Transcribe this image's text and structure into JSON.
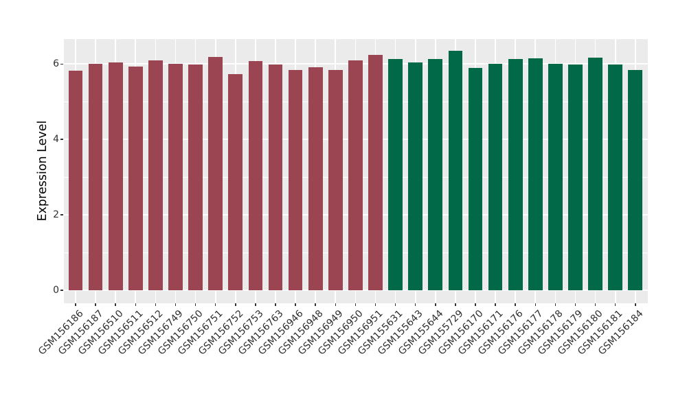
{
  "chart_data": {
    "type": "bar",
    "title": "",
    "xlabel": "",
    "ylabel": "Expression Level",
    "ylim": [
      0,
      6.66
    ],
    "yticks": [
      0,
      2,
      4,
      6
    ],
    "yticks_minor": [
      1,
      3,
      5
    ],
    "grid": true,
    "legend": false,
    "panel_bg": "#EBEBEB",
    "grid_color": "#FFFFFF",
    "group_colors": {
      "group1": "#9A4551",
      "group2": "#016848"
    },
    "categories": [
      "GSM156186",
      "GSM156187",
      "GSM156510",
      "GSM156511",
      "GSM156512",
      "GSM156749",
      "GSM156750",
      "GSM156751",
      "GSM156752",
      "GSM156753",
      "GSM156763",
      "GSM156946",
      "GSM156948",
      "GSM156949",
      "GSM156950",
      "GSM156951",
      "GSM155631",
      "GSM155643",
      "GSM155644",
      "GSM155729",
      "GSM156170",
      "GSM156171",
      "GSM156176",
      "GSM156177",
      "GSM156178",
      "GSM156179",
      "GSM156180",
      "GSM156181",
      "GSM156184"
    ],
    "values": [
      5.83,
      6.0,
      6.05,
      5.94,
      6.09,
      6.0,
      5.98,
      6.18,
      5.73,
      6.07,
      5.98,
      5.85,
      5.92,
      5.85,
      6.09,
      6.24,
      6.14,
      6.05,
      6.14,
      6.35,
      5.9,
      6.01,
      6.14,
      6.15,
      6.0,
      5.99,
      6.17,
      5.98,
      5.85
    ],
    "groups": [
      "group1",
      "group1",
      "group1",
      "group1",
      "group1",
      "group1",
      "group1",
      "group1",
      "group1",
      "group1",
      "group1",
      "group1",
      "group1",
      "group1",
      "group1",
      "group1",
      "group2",
      "group2",
      "group2",
      "group2",
      "group2",
      "group2",
      "group2",
      "group2",
      "group2",
      "group2",
      "group2",
      "group2",
      "group2"
    ]
  }
}
